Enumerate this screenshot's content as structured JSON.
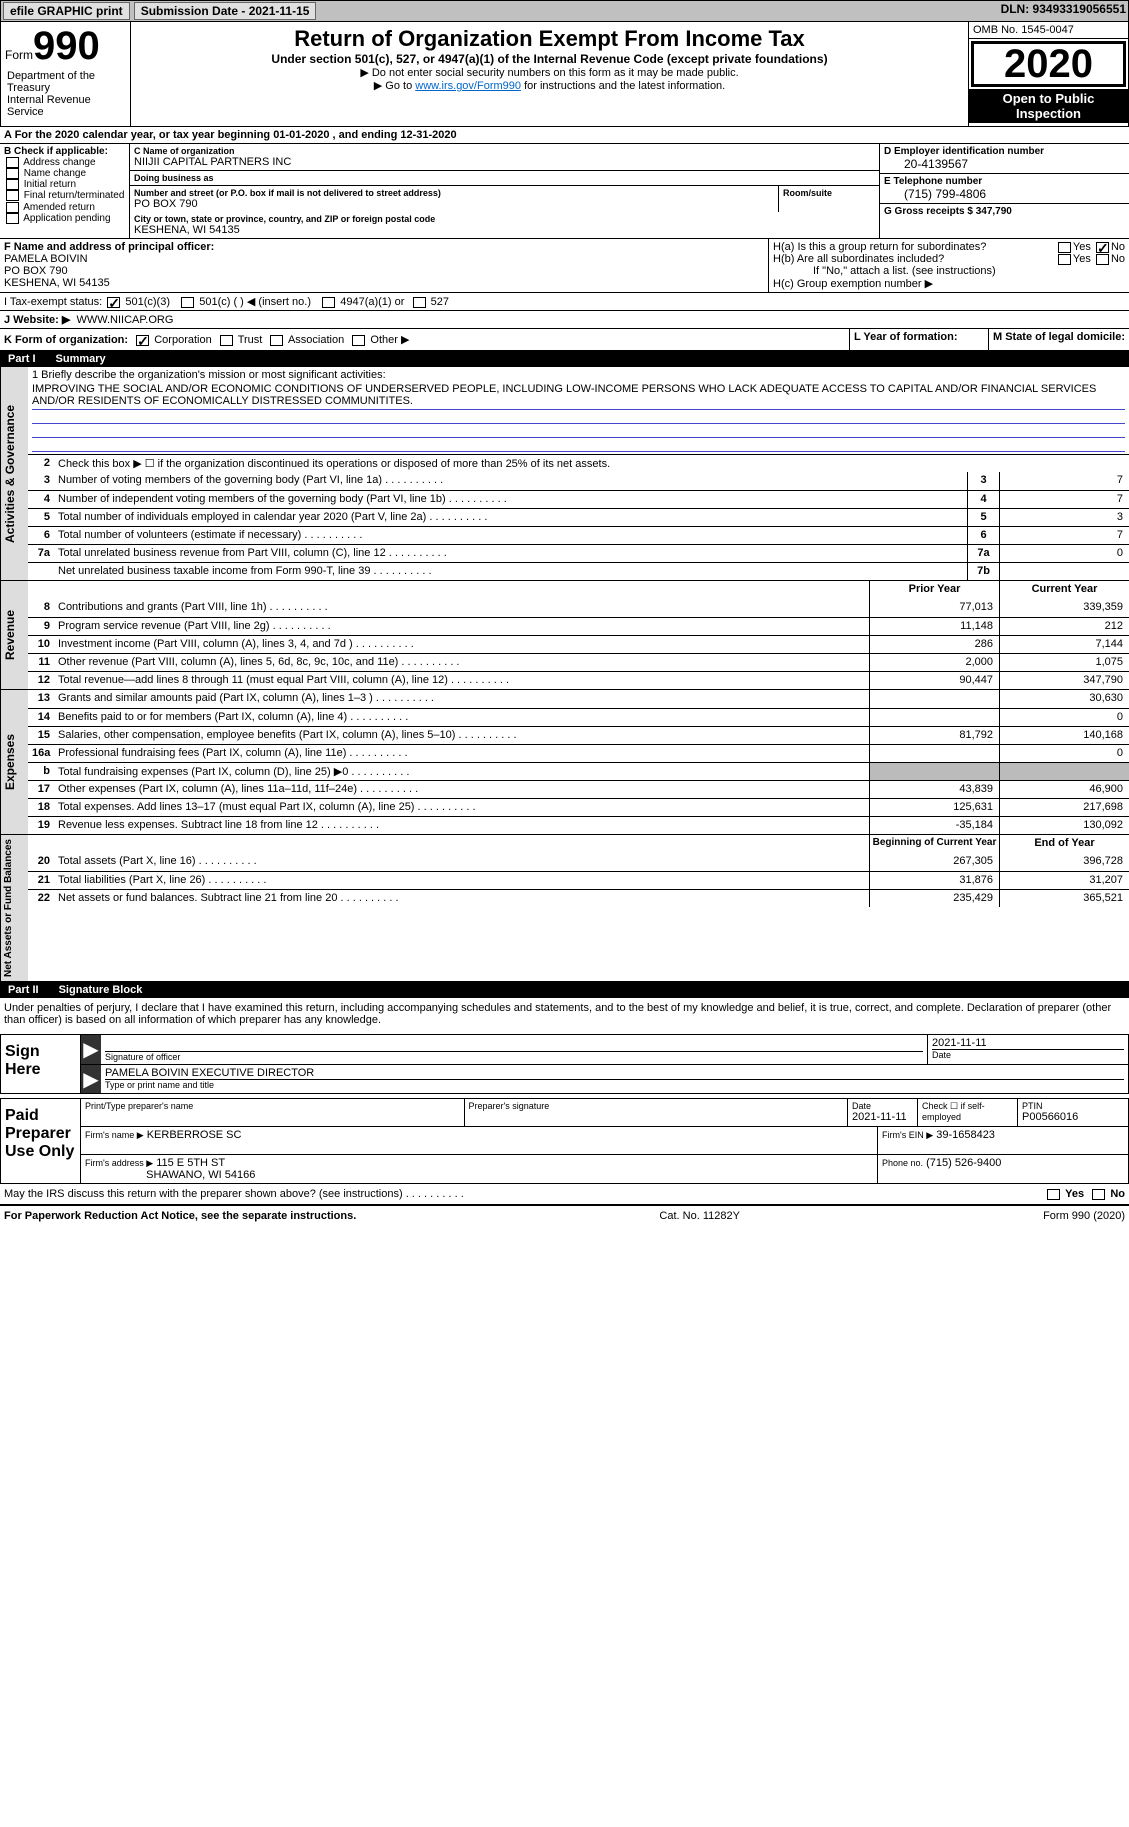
{
  "topbar": {
    "efile": "efile GRAPHIC print",
    "submission_label": "Submission Date - 2021-11-15",
    "dln_label": "DLN: 93493319056551"
  },
  "header": {
    "form_word": "Form",
    "form_num": "990",
    "dept": "Department of the Treasury\nInternal Revenue Service",
    "title": "Return of Organization Exempt From Income Tax",
    "subtitle": "Under section 501(c), 527, or 4947(a)(1) of the Internal Revenue Code (except private foundations)",
    "note1": "▶ Do not enter social security numbers on this form as it may be made public.",
    "note2_pre": "▶ Go to ",
    "note2_link": "www.irs.gov/Form990",
    "note2_post": " for instructions and the latest information.",
    "omb": "OMB No. 1545-0047",
    "year": "2020",
    "inspection": "Open to Public Inspection"
  },
  "period": "A For the 2020 calendar year, or tax year beginning 01-01-2020   , and ending 12-31-2020",
  "block_b": {
    "hdr": "B Check if applicable:",
    "items": [
      "Address change",
      "Name change",
      "Initial return",
      "Final return/terminated",
      "Amended return",
      "Application pending"
    ]
  },
  "block_c": {
    "name_label": "C Name of organization",
    "name": "NIIJII CAPITAL PARTNERS INC",
    "dba_label": "Doing business as",
    "dba": "",
    "street_label": "Number and street (or P.O. box if mail is not delivered to street address)",
    "street": "PO BOX 790",
    "room_label": "Room/suite",
    "city_label": "City or town, state or province, country, and ZIP or foreign postal code",
    "city": "KESHENA, WI  54135"
  },
  "block_d": {
    "ein_label": "D Employer identification number",
    "ein": "20-4139567",
    "phone_label": "E Telephone number",
    "phone": "(715) 799-4806",
    "gross_label": "G Gross receipts $ 347,790"
  },
  "block_f": {
    "label": "F Name and address of principal officer:",
    "name": "PAMELA BOIVIN",
    "street": "PO BOX 790",
    "city": "KESHENA, WI  54135"
  },
  "block_h": {
    "ha": "H(a)  Is this a group return for subordinates?",
    "hb": "H(b)  Are all subordinates included?",
    "hb_note": "If \"No,\" attach a list. (see instructions)",
    "hc": "H(c)  Group exemption number ▶",
    "yes": "Yes",
    "no": "No"
  },
  "row_i": {
    "label": "I   Tax-exempt status:",
    "opt1": "501(c)(3)",
    "opt2": "501(c) (  ) ◀ (insert no.)",
    "opt3": "4947(a)(1) or",
    "opt4": "527"
  },
  "row_j": {
    "label": "J   Website: ▶",
    "value": "WWW.NIICAP.ORG"
  },
  "row_k": {
    "label": "K Form of organization:",
    "opts": [
      "Corporation",
      "Trust",
      "Association",
      "Other ▶"
    ],
    "l_label": "L Year of formation:",
    "l_val": "",
    "m_label": "M State of legal domicile:",
    "m_val": ""
  },
  "part1": {
    "num": "Part I",
    "title": "Summary"
  },
  "mission": {
    "label": "1  Briefly describe the organization's mission or most significant activities:",
    "text": "IMPROVING THE SOCIAL AND/OR ECONOMIC CONDITIONS OF UNDERSERVED PEOPLE, INCLUDING LOW-INCOME PERSONS WHO LACK ADEQUATE ACCESS TO CAPITAL AND/OR FINANCIAL SERVICES AND/OR RESIDENTS OF ECONOMICALLY DISTRESSED COMMUNITITES."
  },
  "line2": "Check this box ▶ ☐ if the organization discontinued its operations or disposed of more than 25% of its net assets.",
  "governance": {
    "side": "Activities & Governance",
    "rows": [
      {
        "n": "3",
        "d": "Number of voting members of the governing body (Part VI, line 1a)",
        "b": "3",
        "v": "7"
      },
      {
        "n": "4",
        "d": "Number of independent voting members of the governing body (Part VI, line 1b)",
        "b": "4",
        "v": "7"
      },
      {
        "n": "5",
        "d": "Total number of individuals employed in calendar year 2020 (Part V, line 2a)",
        "b": "5",
        "v": "3"
      },
      {
        "n": "6",
        "d": "Total number of volunteers (estimate if necessary)",
        "b": "6",
        "v": "7"
      },
      {
        "n": "7a",
        "d": "Total unrelated business revenue from Part VIII, column (C), line 12",
        "b": "7a",
        "v": "0"
      },
      {
        "n": "",
        "d": "Net unrelated business taxable income from Form 990-T, line 39",
        "b": "7b",
        "v": ""
      }
    ]
  },
  "col_headers": {
    "prior": "Prior Year",
    "current": "Current Year",
    "begin": "Beginning of Current Year",
    "end": "End of Year"
  },
  "revenue": {
    "side": "Revenue",
    "rows": [
      {
        "n": "8",
        "d": "Contributions and grants (Part VIII, line 1h)",
        "p": "77,013",
        "c": "339,359"
      },
      {
        "n": "9",
        "d": "Program service revenue (Part VIII, line 2g)",
        "p": "11,148",
        "c": "212"
      },
      {
        "n": "10",
        "d": "Investment income (Part VIII, column (A), lines 3, 4, and 7d )",
        "p": "286",
        "c": "7,144"
      },
      {
        "n": "11",
        "d": "Other revenue (Part VIII, column (A), lines 5, 6d, 8c, 9c, 10c, and 11e)",
        "p": "2,000",
        "c": "1,075"
      },
      {
        "n": "12",
        "d": "Total revenue—add lines 8 through 11 (must equal Part VIII, column (A), line 12)",
        "p": "90,447",
        "c": "347,790"
      }
    ]
  },
  "expenses": {
    "side": "Expenses",
    "rows": [
      {
        "n": "13",
        "d": "Grants and similar amounts paid (Part IX, column (A), lines 1–3 )",
        "p": "",
        "c": "30,630"
      },
      {
        "n": "14",
        "d": "Benefits paid to or for members (Part IX, column (A), line 4)",
        "p": "",
        "c": "0"
      },
      {
        "n": "15",
        "d": "Salaries, other compensation, employee benefits (Part IX, column (A), lines 5–10)",
        "p": "81,792",
        "c": "140,168"
      },
      {
        "n": "16a",
        "d": "Professional fundraising fees (Part IX, column (A), line 11e)",
        "p": "",
        "c": "0"
      },
      {
        "n": "b",
        "d": "Total fundraising expenses (Part IX, column (D), line 25) ▶0",
        "p": "shade",
        "c": "shade"
      },
      {
        "n": "17",
        "d": "Other expenses (Part IX, column (A), lines 11a–11d, 11f–24e)",
        "p": "43,839",
        "c": "46,900"
      },
      {
        "n": "18",
        "d": "Total expenses. Add lines 13–17 (must equal Part IX, column (A), line 25)",
        "p": "125,631",
        "c": "217,698"
      },
      {
        "n": "19",
        "d": "Revenue less expenses. Subtract line 18 from line 12",
        "p": "-35,184",
        "c": "130,092"
      }
    ]
  },
  "netassets": {
    "side": "Net Assets or Fund Balances",
    "rows": [
      {
        "n": "20",
        "d": "Total assets (Part X, line 16)",
        "p": "267,305",
        "c": "396,728"
      },
      {
        "n": "21",
        "d": "Total liabilities (Part X, line 26)",
        "p": "31,876",
        "c": "31,207"
      },
      {
        "n": "22",
        "d": "Net assets or fund balances. Subtract line 21 from line 20",
        "p": "235,429",
        "c": "365,521"
      }
    ]
  },
  "part2": {
    "num": "Part II",
    "title": "Signature Block"
  },
  "penalties": "Under penalties of perjury, I declare that I have examined this return, including accompanying schedules and statements, and to the best of my knowledge and belief, it is true, correct, and complete. Declaration of preparer (other than officer) is based on all information of which preparer has any knowledge.",
  "sign": {
    "here": "Sign Here",
    "sig_officer_label": "Signature of officer",
    "date_label": "Date",
    "date": "2021-11-11",
    "name": "PAMELA BOIVIN  EXECUTIVE DIRECTOR",
    "name_label": "Type or print name and title"
  },
  "preparer": {
    "side": "Paid Preparer Use Only",
    "print_label": "Print/Type preparer's name",
    "sig_label": "Preparer's signature",
    "date_label": "Date",
    "date": "2021-11-11",
    "check_label": "Check ☐ if self-employed",
    "ptin_label": "PTIN",
    "ptin": "P00566016",
    "firm_name_label": "Firm's name    ▶",
    "firm_name": "KERBERROSE SC",
    "firm_ein_label": "Firm's EIN ▶",
    "firm_ein": "39-1658423",
    "firm_addr_label": "Firm's address ▶",
    "firm_addr1": "115 E 5TH ST",
    "firm_addr2": "SHAWANO, WI  54166",
    "phone_label": "Phone no.",
    "phone": "(715) 526-9400"
  },
  "discuss": "May the IRS discuss this return with the preparer shown above? (see instructions)",
  "footer": {
    "left": "For Paperwork Reduction Act Notice, see the separate instructions.",
    "mid": "Cat. No. 11282Y",
    "right": "Form 990 (2020)"
  }
}
